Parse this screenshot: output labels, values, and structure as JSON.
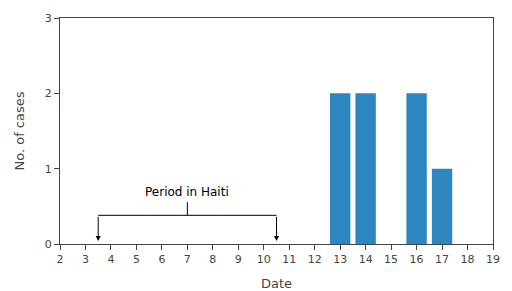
{
  "chart_data": {
    "type": "bar",
    "x": [
      13,
      14,
      16,
      17
    ],
    "values": [
      2,
      2,
      2,
      1
    ],
    "color": "#2E86C1",
    "xlabel": "Date",
    "ylabel": "No. of cases",
    "xlim": [
      2,
      19
    ],
    "xticks": [
      2,
      3,
      4,
      5,
      6,
      7,
      8,
      9,
      10,
      11,
      12,
      13,
      14,
      15,
      16,
      17,
      18,
      19
    ],
    "ylim": [
      0,
      3
    ],
    "yticks": [
      0,
      1,
      2,
      3
    ],
    "grid": false,
    "annotations": [
      {
        "text": "Period in Haiti",
        "x_start": 3.5,
        "x_end": 10.5
      }
    ]
  }
}
